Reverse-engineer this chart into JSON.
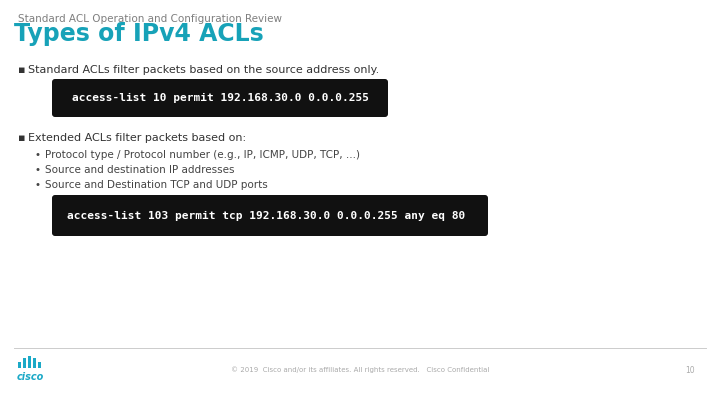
{
  "bg_color": "#ffffff",
  "subtitle": "Standard ACL Operation and Configuration Review",
  "title": "Types of IPv4 ACLs",
  "subtitle_color": "#7f7f7f",
  "title_color": "#17a2b8",
  "bullet1_text": "Standard ACLs filter packets based on the source address only.",
  "code1": "access-list 10 permit 192.168.30.0 0.0.0.255",
  "bullet2_text": "Extended ACLs filter packets based on:",
  "sub_bullets": [
    "Protocol type / Protocol number (e.g., IP, ICMP, UDP, TCP, ...)",
    "Source and destination IP addresses",
    "Source and Destination TCP and UDP ports"
  ],
  "code2": "access-list 103 permit tcp 192.168.30.0 0.0.0.255 any eq 80",
  "code_bg": "#111111",
  "code_fg": "#ffffff",
  "bullet_color": "#333333",
  "sub_bullet_color": "#444444",
  "footer_text": "© 2019  Cisco and/or its affiliates. All rights reserved.   Cisco Confidential",
  "footer_page": "10",
  "footer_color": "#aaaaaa",
  "cisco_color": "#1ba9c7",
  "subtitle_fontsize": 7.5,
  "title_fontsize": 17,
  "body_fontsize": 8,
  "sub_fontsize": 7.5,
  "code_fontsize": 8
}
